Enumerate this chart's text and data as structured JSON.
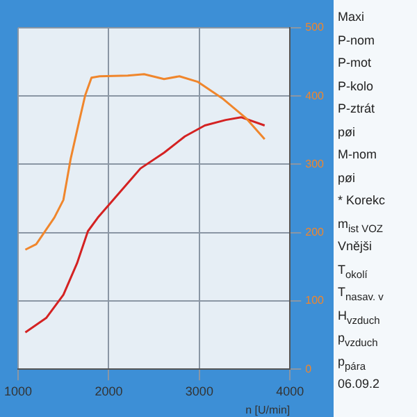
{
  "chart_data": {
    "type": "line",
    "xlabel": "n [U/min]",
    "xlim": [
      1000,
      4000
    ],
    "xticks": [
      1000,
      2000,
      3000,
      4000
    ],
    "ylim": [
      0,
      500
    ],
    "yticks": [
      0,
      100,
      200,
      300,
      400,
      500
    ],
    "grid": true,
    "legend": false,
    "marker": "none",
    "line_style": "solid",
    "series": [
      {
        "color": "#f0862c",
        "x": [
          1080,
          1200,
          1400,
          1500,
          1580,
          1670,
          1740,
          1810,
          1900,
          2210,
          2390,
          2610,
          2780,
          2980,
          3250,
          3520,
          3720
        ],
        "values": [
          175,
          183,
          222,
          248,
          308,
          361,
          401,
          427,
          429,
          430,
          432,
          425,
          429,
          421,
          397,
          367,
          337
        ]
      },
      {
        "color": "#d42222",
        "x": [
          1080,
          1310,
          1500,
          1650,
          1770,
          1880,
          2050,
          2350,
          2610,
          2840,
          3060,
          3290,
          3460,
          3720
        ],
        "values": [
          54,
          75,
          109,
          155,
          202,
          222,
          248,
          294,
          317,
          341,
          357,
          365,
          369,
          357
        ]
      }
    ],
    "annotations": [
      "Maxi",
      "P-nom",
      "P-mot",
      "P-kolo",
      "P-ztrát",
      "pøi",
      "M-nom",
      "pøi",
      "* Korekc",
      "m$_{ist VOZ}$",
      "Vnějši",
      "T$_{okolí}$",
      "T$_{nasav. v}$",
      "H$_{vzduch}$",
      "p$_{vzduch}$",
      "p$_{pára}$",
      "06.09.2"
    ]
  }
}
